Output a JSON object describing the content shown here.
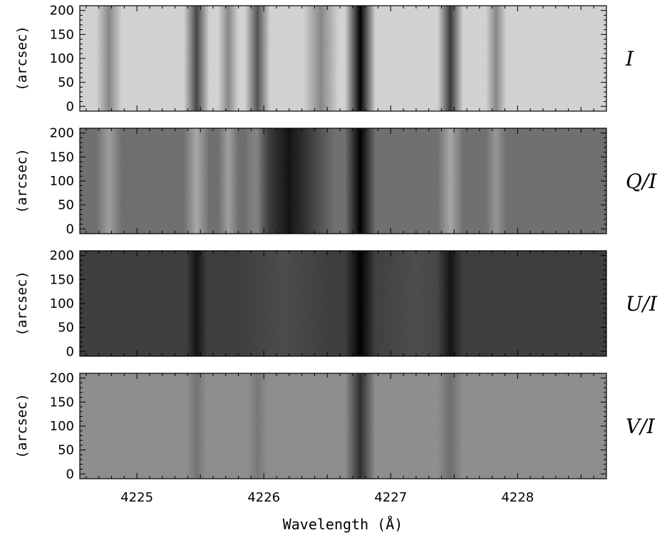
{
  "chart_data": {
    "type": "heatmap",
    "xlabel": "Wavelength (Å)",
    "xlim": [
      4224.55,
      4228.7
    ],
    "xticks": [
      "4225",
      "4226",
      "4227",
      "4228"
    ],
    "panels": [
      {
        "label": "I",
        "ylabel": "(arcsec)",
        "ylim": [
          -10,
          210
        ],
        "yticks": [
          "0",
          "50",
          "100",
          "150",
          "200"
        ],
        "base_level": 0.82,
        "lines": [
          {
            "center": 4224.78,
            "width": 0.05,
            "depth": 0.3
          },
          {
            "center": 4225.47,
            "width": 0.05,
            "depth": 0.55
          },
          {
            "center": 4225.72,
            "width": 0.04,
            "depth": 0.3
          },
          {
            "center": 4225.95,
            "width": 0.05,
            "depth": 0.5
          },
          {
            "center": 4226.45,
            "width": 0.07,
            "depth": 0.3
          },
          {
            "center": 4226.76,
            "width": 0.06,
            "depth": 0.9
          },
          {
            "center": 4227.47,
            "width": 0.05,
            "depth": 0.6
          },
          {
            "center": 4227.83,
            "width": 0.04,
            "depth": 0.3
          }
        ]
      },
      {
        "label": "Q/I",
        "ylabel": "(arcsec)",
        "ylim": [
          -10,
          210
        ],
        "yticks": [
          "0",
          "50",
          "100",
          "150",
          "200"
        ],
        "base_level": 0.42,
        "lines": [
          {
            "center": 4224.78,
            "width": 0.05,
            "depth": -0.18
          },
          {
            "center": 4225.47,
            "width": 0.05,
            "depth": -0.22
          },
          {
            "center": 4225.72,
            "width": 0.04,
            "depth": -0.18
          },
          {
            "center": 4225.95,
            "width": 0.05,
            "depth": -0.25
          },
          {
            "center": 4226.2,
            "width": 0.18,
            "depth": 0.35
          },
          {
            "center": 4226.76,
            "width": 0.06,
            "depth": 0.45
          },
          {
            "center": 4227.47,
            "width": 0.05,
            "depth": -0.22
          },
          {
            "center": 4227.83,
            "width": 0.04,
            "depth": -0.15
          }
        ]
      },
      {
        "label": "U/I",
        "ylabel": "(arcsec)",
        "ylim": [
          -10,
          210
        ],
        "yticks": [
          "0",
          "50",
          "100",
          "150",
          "200"
        ],
        "base_level": 0.22,
        "lines": [
          {
            "center": 4225.47,
            "width": 0.04,
            "depth": 0.15
          },
          {
            "center": 4226.15,
            "width": 0.18,
            "depth": -0.05
          },
          {
            "center": 4226.76,
            "width": 0.06,
            "depth": 0.45
          },
          {
            "center": 4227.2,
            "width": 0.18,
            "depth": -0.05
          },
          {
            "center": 4227.47,
            "width": 0.05,
            "depth": 0.15
          }
        ]
      },
      {
        "label": "V/I",
        "ylabel": "(arcsec)",
        "ylim": [
          -10,
          210
        ],
        "yticks": [
          "0",
          "50",
          "100",
          "150",
          "200"
        ],
        "base_level": 0.52,
        "lines": [
          {
            "center": 4225.47,
            "width": 0.04,
            "depth": 0.1
          },
          {
            "center": 4225.95,
            "width": 0.04,
            "depth": 0.08
          },
          {
            "center": 4226.76,
            "width": 0.06,
            "depth": 0.35
          },
          {
            "center": 4227.47,
            "width": 0.05,
            "depth": 0.12
          }
        ]
      }
    ]
  }
}
